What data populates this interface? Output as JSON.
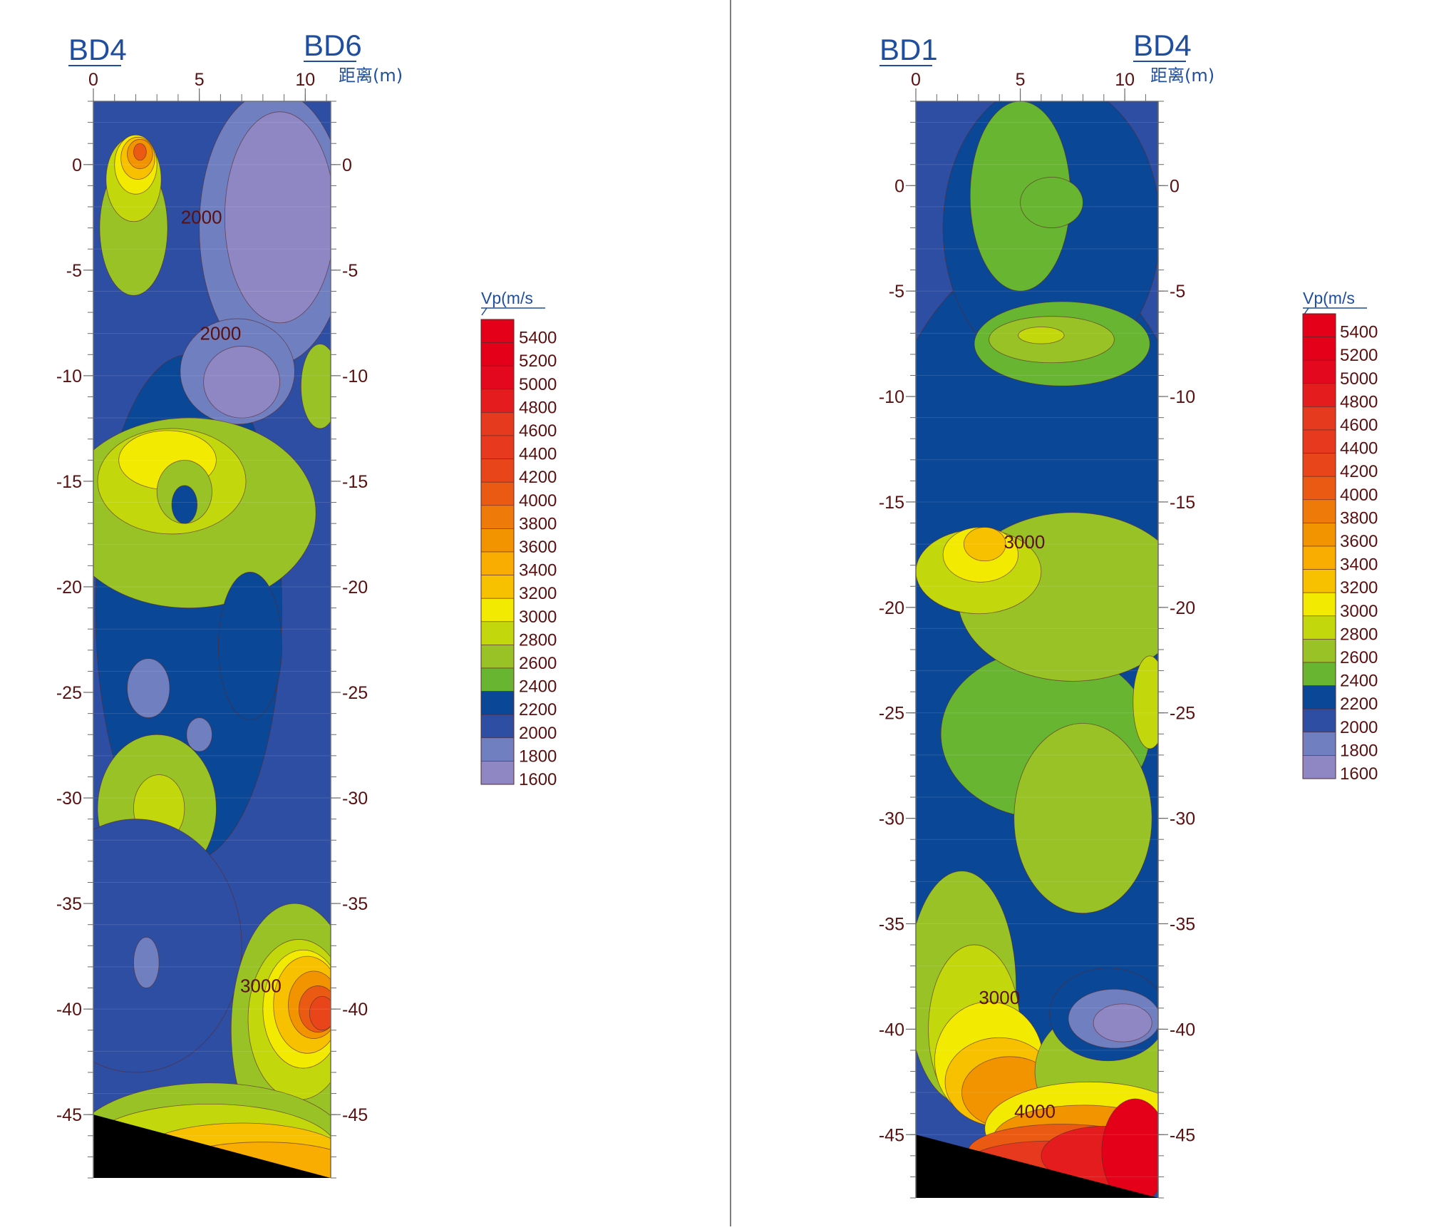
{
  "chart_data": [
    {
      "type": "heatmap",
      "left_label": "BD4",
      "right_label": "BD6",
      "x_axis": {
        "ticks": [
          0,
          5,
          10
        ],
        "unit": "距离(m)",
        "range": [
          0,
          11.2
        ]
      },
      "y_axis": {
        "ticks": [
          0,
          -5,
          -10,
          -15,
          -20,
          -25,
          -30,
          -35,
          -40,
          -45
        ],
        "range": [
          -48,
          3
        ]
      },
      "legend": {
        "title": "Vp(m/s",
        "levels": [
          5400,
          5200,
          5000,
          4800,
          4600,
          4400,
          4200,
          4000,
          3800,
          3600,
          3400,
          3200,
          3000,
          2800,
          2600,
          2400,
          2200,
          2000,
          1800,
          1600
        ]
      },
      "contour_labels": [
        {
          "text": "2000",
          "x": 5.1,
          "y": -2.8
        },
        {
          "text": "2000",
          "x": 6.0,
          "y": -8.3
        },
        {
          "text": "3000",
          "x": 7.9,
          "y": -39.2
        }
      ],
      "bottom_boundary": {
        "left_depth": -45,
        "right_depth": -48
      },
      "blobs": [
        {
          "v": 2200,
          "x": 4.5,
          "y": -21,
          "rx": 4.4,
          "ry": 12
        },
        {
          "v": 1800,
          "x": 8.5,
          "y": -3,
          "rx": 3.5,
          "ry": 6.5
        },
        {
          "v": 1600,
          "x": 8.8,
          "y": -2.5,
          "rx": 2.6,
          "ry": 5
        },
        {
          "v": 1800,
          "x": 6.8,
          "y": -9.8,
          "rx": 2.7,
          "ry": 2.5
        },
        {
          "v": 1600,
          "x": 7,
          "y": -10.3,
          "rx": 1.8,
          "ry": 1.7
        },
        {
          "v": 2600,
          "x": 1.9,
          "y": -3,
          "rx": 1.6,
          "ry": 3.2
        },
        {
          "v": 2800,
          "x": 1.9,
          "y": -0.7,
          "rx": 1.3,
          "ry": 2
        },
        {
          "v": 3000,
          "x": 2,
          "y": 0,
          "rx": 1,
          "ry": 1.4
        },
        {
          "v": 3200,
          "x": 2.1,
          "y": 0.3,
          "rx": 0.8,
          "ry": 1
        },
        {
          "v": 3600,
          "x": 2.2,
          "y": 0.5,
          "rx": 0.6,
          "ry": 0.7
        },
        {
          "v": 4000,
          "x": 2.2,
          "y": 0.6,
          "rx": 0.3,
          "ry": 0.4
        },
        {
          "v": 2600,
          "x": 4.5,
          "y": -16.5,
          "rx": 6,
          "ry": 4.5
        },
        {
          "v": 2800,
          "x": 3.7,
          "y": -15,
          "rx": 3.5,
          "ry": 2.5
        },
        {
          "v": 3000,
          "x": 3.5,
          "y": -14,
          "rx": 2.3,
          "ry": 1.4
        },
        {
          "v": 2600,
          "x": 10.7,
          "y": -10.5,
          "rx": 0.9,
          "ry": 2
        },
        {
          "v": 2600,
          "x": 4.3,
          "y": -15.5,
          "rx": 1.3,
          "ry": 1.5
        },
        {
          "v": 2200,
          "x": 4.3,
          "y": -16.1,
          "rx": 0.6,
          "ry": 0.9
        },
        {
          "v": 2200,
          "x": 7.4,
          "y": -22.8,
          "rx": 1.5,
          "ry": 3.5
        },
        {
          "v": 2600,
          "x": 3,
          "y": -30.5,
          "rx": 2.8,
          "ry": 3.5
        },
        {
          "v": 2800,
          "x": 3.1,
          "y": -30.5,
          "rx": 1.2,
          "ry": 1.6
        },
        {
          "v": 2000,
          "x": 2,
          "y": -37,
          "rx": 5,
          "ry": 6
        },
        {
          "v": 1800,
          "x": 2.5,
          "y": -37.8,
          "rx": 0.6,
          "ry": 1.2
        },
        {
          "v": 1800,
          "x": 2.6,
          "y": -24.8,
          "rx": 1,
          "ry": 1.4
        },
        {
          "v": 1800,
          "x": 5,
          "y": -27,
          "rx": 0.6,
          "ry": 0.8
        },
        {
          "v": 2600,
          "x": 9.5,
          "y": -41,
          "rx": 3,
          "ry": 6
        },
        {
          "v": 2800,
          "x": 9.7,
          "y": -40.5,
          "rx": 2.4,
          "ry": 3.8
        },
        {
          "v": 3000,
          "x": 9.9,
          "y": -40,
          "rx": 1.9,
          "ry": 2.8
        },
        {
          "v": 3200,
          "x": 10.1,
          "y": -39.8,
          "rx": 1.6,
          "ry": 2.3
        },
        {
          "v": 3600,
          "x": 10.4,
          "y": -39.8,
          "rx": 1.2,
          "ry": 1.6
        },
        {
          "v": 4000,
          "x": 10.6,
          "y": -40,
          "rx": 0.9,
          "ry": 1.1
        },
        {
          "v": 4200,
          "x": 10.8,
          "y": -40.2,
          "rx": 0.6,
          "ry": 0.8
        },
        {
          "v": 2600,
          "x": 5.5,
          "y": -46.5,
          "rx": 6.5,
          "ry": 3
        },
        {
          "v": 2800,
          "x": 5.5,
          "y": -46.7,
          "rx": 6,
          "ry": 2.2
        },
        {
          "v": 3200,
          "x": 7,
          "y": -47,
          "rx": 5,
          "ry": 1.6
        },
        {
          "v": 3400,
          "x": 8,
          "y": -47.5,
          "rx": 4.5,
          "ry": 1.2
        },
        {
          "v": 3800,
          "x": 5,
          "y": -47.8,
          "rx": 2.5,
          "ry": 0.8
        }
      ]
    },
    {
      "type": "heatmap",
      "left_label": "BD1",
      "right_label": "BD4",
      "x_axis": {
        "ticks": [
          0,
          5,
          10
        ],
        "unit": "距离(m)",
        "range": [
          0,
          11.6
        ]
      },
      "y_axis": {
        "ticks": [
          0,
          -5,
          -10,
          -15,
          -20,
          -25,
          -30,
          -35,
          -40,
          -45
        ],
        "range": [
          -48,
          4
        ]
      },
      "legend": {
        "title": "Vp(m/s",
        "levels": [
          5400,
          5200,
          5000,
          4800,
          4600,
          4400,
          4200,
          4000,
          3800,
          3600,
          3400,
          3200,
          3000,
          2800,
          2600,
          2400,
          2200,
          2000,
          1800,
          1600
        ]
      },
      "contour_labels": [
        {
          "text": "3000",
          "x": 5.2,
          "y": -17.2
        },
        {
          "text": "3000",
          "x": 4,
          "y": -38.8
        },
        {
          "text": "4000",
          "x": 5.7,
          "y": -44.2
        }
      ],
      "bottom_boundary": {
        "left_depth": -45,
        "right_depth": -48
      },
      "blobs": [
        {
          "v": 2200,
          "x": 5.8,
          "y": -24,
          "rx": 9.5,
          "ry": 21
        },
        {
          "v": 2200,
          "x": 6.5,
          "y": -2,
          "rx": 5.2,
          "ry": 7
        },
        {
          "v": 2400,
          "x": 5,
          "y": -0.5,
          "rx": 2.4,
          "ry": 4.5
        },
        {
          "v": 2400,
          "x": 6.5,
          "y": -0.8,
          "rx": 1.5,
          "ry": 1.2
        },
        {
          "v": 2400,
          "x": 7,
          "y": -7.5,
          "rx": 4.2,
          "ry": 2
        },
        {
          "v": 2600,
          "x": 6.5,
          "y": -7.3,
          "rx": 3,
          "ry": 1.1
        },
        {
          "v": 2800,
          "x": 6,
          "y": -7.1,
          "rx": 1.1,
          "ry": 0.4
        },
        {
          "v": 2400,
          "x": 6.2,
          "y": -26,
          "rx": 5,
          "ry": 4
        },
        {
          "v": 2600,
          "x": 7.5,
          "y": -19.5,
          "rx": 5.5,
          "ry": 4
        },
        {
          "v": 2600,
          "x": 8,
          "y": -30,
          "rx": 3.3,
          "ry": 4.5
        },
        {
          "v": 2800,
          "x": 3,
          "y": -18.3,
          "rx": 3,
          "ry": 2
        },
        {
          "v": 3000,
          "x": 3.1,
          "y": -17.5,
          "rx": 1.8,
          "ry": 1.3
        },
        {
          "v": 3200,
          "x": 3.3,
          "y": -17,
          "rx": 1,
          "ry": 0.8
        },
        {
          "v": 2800,
          "x": 11.2,
          "y": -24.5,
          "rx": 0.8,
          "ry": 2.2
        },
        {
          "v": 2600,
          "x": 2.2,
          "y": -38,
          "rx": 2.6,
          "ry": 5.5
        },
        {
          "v": 2800,
          "x": 2.8,
          "y": -40,
          "rx": 2.2,
          "ry": 4
        },
        {
          "v": 3000,
          "x": 3.5,
          "y": -41.5,
          "rx": 2.6,
          "ry": 2.8
        },
        {
          "v": 3200,
          "x": 4,
          "y": -42.5,
          "rx": 2.6,
          "ry": 2.1
        },
        {
          "v": 3600,
          "x": 4.5,
          "y": -43,
          "rx": 2.3,
          "ry": 1.7
        },
        {
          "v": 2600,
          "x": 9,
          "y": -42,
          "rx": 3.3,
          "ry": 3
        },
        {
          "v": 2200,
          "x": 9.2,
          "y": -39.3,
          "rx": 2.8,
          "ry": 2.2
        },
        {
          "v": 1800,
          "x": 9.5,
          "y": -39.5,
          "rx": 2.2,
          "ry": 1.4
        },
        {
          "v": 1600,
          "x": 9.9,
          "y": -39.7,
          "rx": 1.4,
          "ry": 0.9
        },
        {
          "v": 3000,
          "x": 8.3,
          "y": -44.7,
          "rx": 5,
          "ry": 2.2
        },
        {
          "v": 3600,
          "x": 8,
          "y": -45.2,
          "rx": 4.3,
          "ry": 1.6
        },
        {
          "v": 4000,
          "x": 7,
          "y": -45.8,
          "rx": 4.5,
          "ry": 1.3
        },
        {
          "v": 4400,
          "x": 6.5,
          "y": -46.3,
          "rx": 4,
          "ry": 1
        },
        {
          "v": 4800,
          "x": 9,
          "y": -46,
          "rx": 3,
          "ry": 1.4
        },
        {
          "v": 5400,
          "x": 10.5,
          "y": -45.8,
          "rx": 1.6,
          "ry": 2.5
        }
      ]
    }
  ]
}
